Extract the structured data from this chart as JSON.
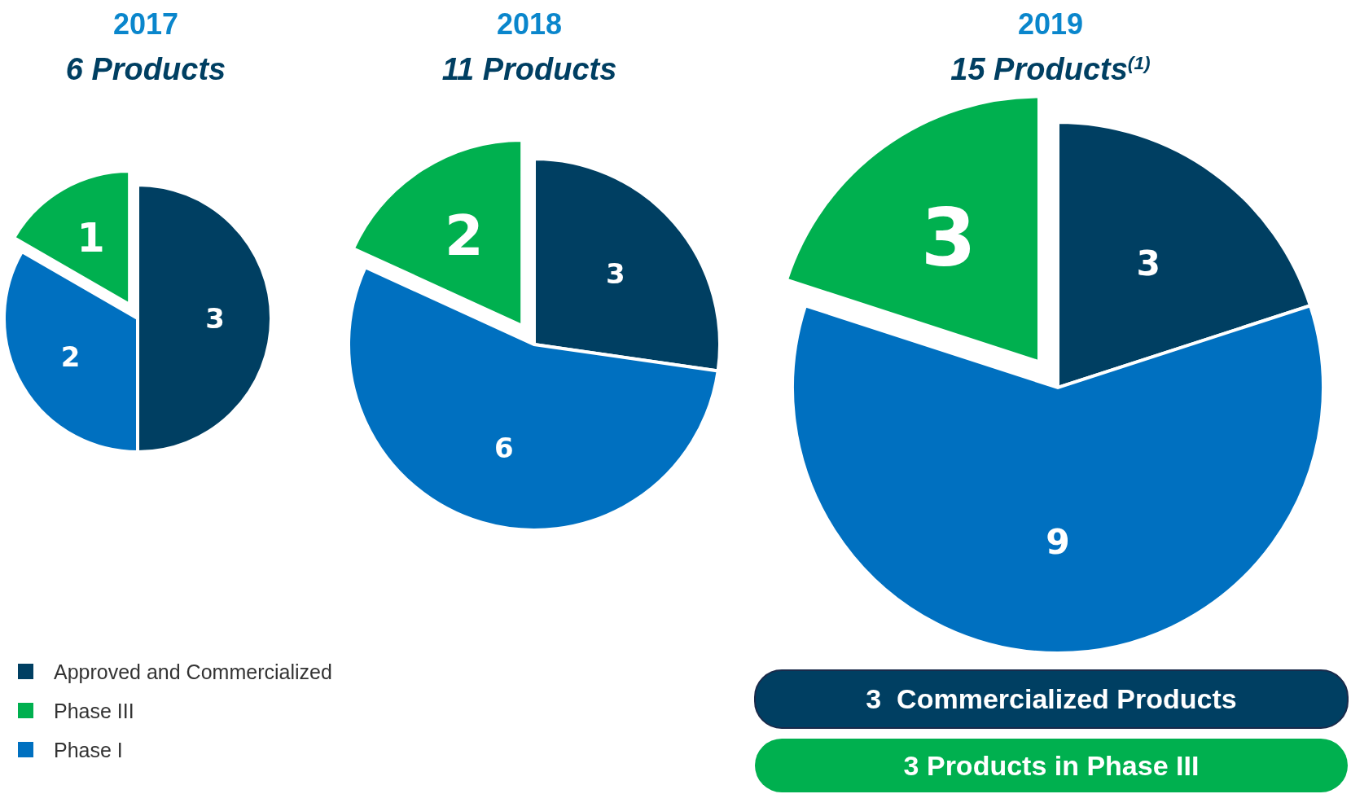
{
  "chart_data": [
    {
      "type": "pie",
      "title": "2017",
      "subtitle": "6 Products",
      "categories": [
        "Approved and Commercialized",
        "Phase I",
        "Phase III"
      ],
      "values": [
        3,
        2,
        1
      ],
      "colors": [
        "#003f62",
        "#0070c0",
        "#00b04f"
      ],
      "data_labels": true,
      "legend": "bottom"
    },
    {
      "type": "pie",
      "title": "2018",
      "subtitle": "11 Products",
      "categories": [
        null,
        null,
        null
      ],
      "values": [
        3,
        6,
        2
      ],
      "colors": [
        "#003f62",
        "#0070c0",
        "#00b04f"
      ],
      "data_labels": true
    },
    {
      "type": "pie",
      "title": "2019",
      "subtitle": "15 Products$^{(1)}$",
      "categories": [
        null,
        null,
        null
      ],
      "values": [
        3,
        9,
        3
      ],
      "colors": [
        "#003f62",
        "#0070c0",
        "#00b04f"
      ],
      "data_labels": true
    },
    {
      "type": "other",
      "annotations": [
        "3  Commercialized Products",
        "3 Products in Phase III"
      ]
    }
  ]
}
